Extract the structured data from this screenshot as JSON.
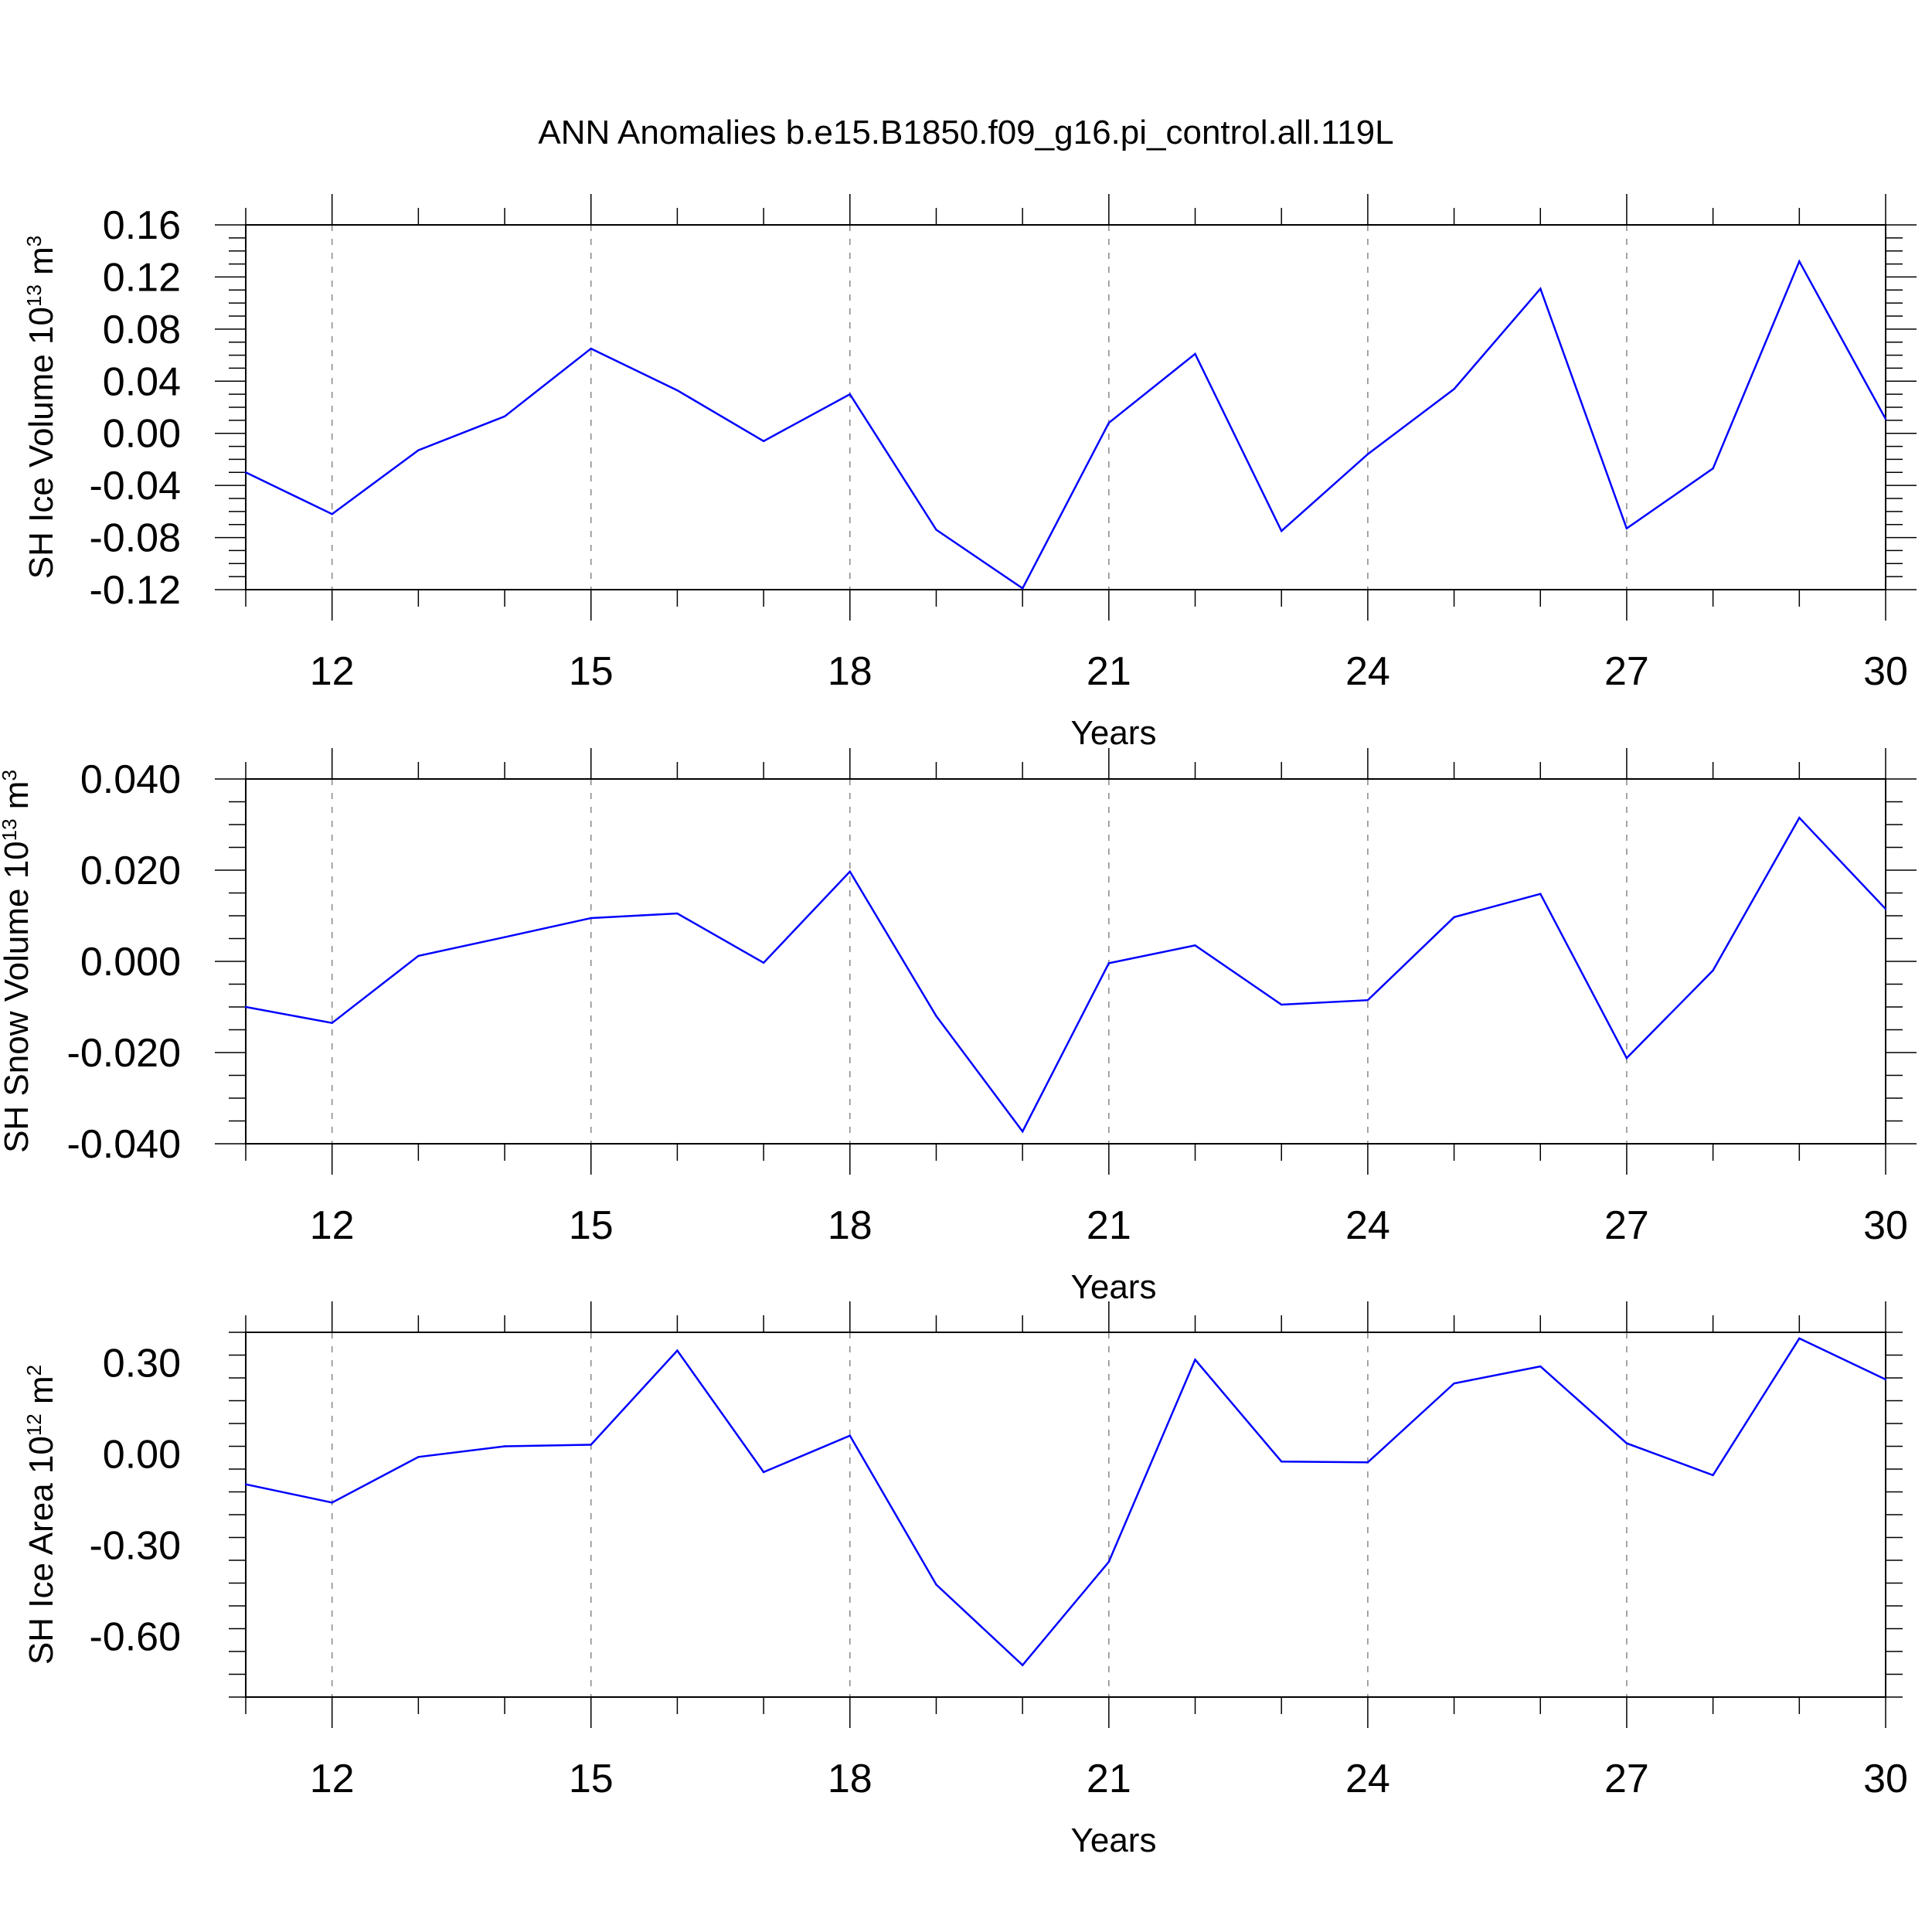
{
  "title": "ANN Anomalies b.e15.B1850.f09_g16.pi_control.all.119L",
  "colors": {
    "line": "#0000ff",
    "axis": "#000000",
    "grid": "#888888"
  },
  "chart_data": [
    {
      "type": "line",
      "xlabel": "Years",
      "ylabel": {
        "main": "SH Ice Volume 10",
        "exp": "13",
        "unit": " m",
        "unit_exp": "3"
      },
      "xlim": [
        11,
        30
      ],
      "ylim": [
        -0.12,
        0.16
      ],
      "x_ticks": [
        "12",
        "15",
        "18",
        "21",
        "24",
        "27",
        "30"
      ],
      "y_ticks": [
        "0.16",
        "0.12",
        "0.08",
        "0.04",
        "0.00",
        "-0.04",
        "-0.08",
        "-0.12"
      ],
      "grid": "vertical dashed at major x ticks",
      "series": [
        {
          "x": [
            11,
            12,
            13,
            14,
            15,
            16,
            17,
            18,
            19,
            20,
            21,
            22,
            23,
            24,
            25,
            26,
            27,
            28,
            29,
            30
          ],
          "values": [
            -0.03,
            -0.062,
            -0.013,
            0.013,
            0.065,
            0.033,
            -0.006,
            0.03,
            -0.074,
            -0.119,
            0.008,
            0.061,
            -0.075,
            -0.016,
            0.034,
            0.111,
            -0.073,
            -0.027,
            0.132,
            0.011
          ]
        }
      ]
    },
    {
      "type": "line",
      "xlabel": "Years",
      "ylabel": {
        "main": "SH Snow Volume 10",
        "exp": "13",
        "unit": " m",
        "unit_exp": "3"
      },
      "xlim": [
        11,
        30
      ],
      "ylim": [
        -0.04,
        0.04
      ],
      "x_ticks": [
        "12",
        "15",
        "18",
        "21",
        "24",
        "27",
        "30"
      ],
      "y_ticks": [
        "0.040",
        "0.020",
        "0.000",
        "-0.020",
        "-0.040"
      ],
      "grid": "vertical dashed at major x ticks",
      "series": [
        {
          "x": [
            11,
            12,
            13,
            14,
            15,
            16,
            17,
            18,
            19,
            20,
            21,
            22,
            23,
            24,
            25,
            26,
            27,
            28,
            29,
            30
          ],
          "values": [
            -0.01,
            -0.0135,
            0.0012,
            0.0053,
            0.0095,
            0.0105,
            -0.0003,
            0.0197,
            -0.012,
            -0.0373,
            -0.0004,
            0.0035,
            -0.0095,
            -0.0085,
            0.0097,
            0.0148,
            -0.0212,
            -0.002,
            0.0315,
            0.0115
          ]
        }
      ]
    },
    {
      "type": "line",
      "xlabel": "Years",
      "ylabel": {
        "main": "SH Ice Area 10",
        "exp": "12",
        "unit": " m",
        "unit_exp": "2"
      },
      "xlim": [
        11,
        30
      ],
      "ylim": [
        -0.8,
        0.4
      ],
      "x_ticks": [
        "12",
        "15",
        "18",
        "21",
        "24",
        "27",
        "30"
      ],
      "y_ticks": [
        "0.30",
        "0.00",
        "-0.30",
        "-0.60"
      ],
      "grid": "vertical dashed at major x ticks",
      "series": [
        {
          "x": [
            11,
            12,
            13,
            14,
            15,
            16,
            17,
            18,
            19,
            20,
            21,
            22,
            23,
            24,
            25,
            26,
            27,
            28,
            29,
            30
          ],
          "values": [
            -0.1,
            -0.16,
            -0.01,
            0.025,
            0.03,
            0.34,
            -0.06,
            0.06,
            -0.43,
            -0.695,
            -0.355,
            0.31,
            -0.025,
            -0.028,
            0.232,
            0.288,
            0.035,
            -0.07,
            0.38,
            0.245
          ]
        }
      ]
    }
  ]
}
